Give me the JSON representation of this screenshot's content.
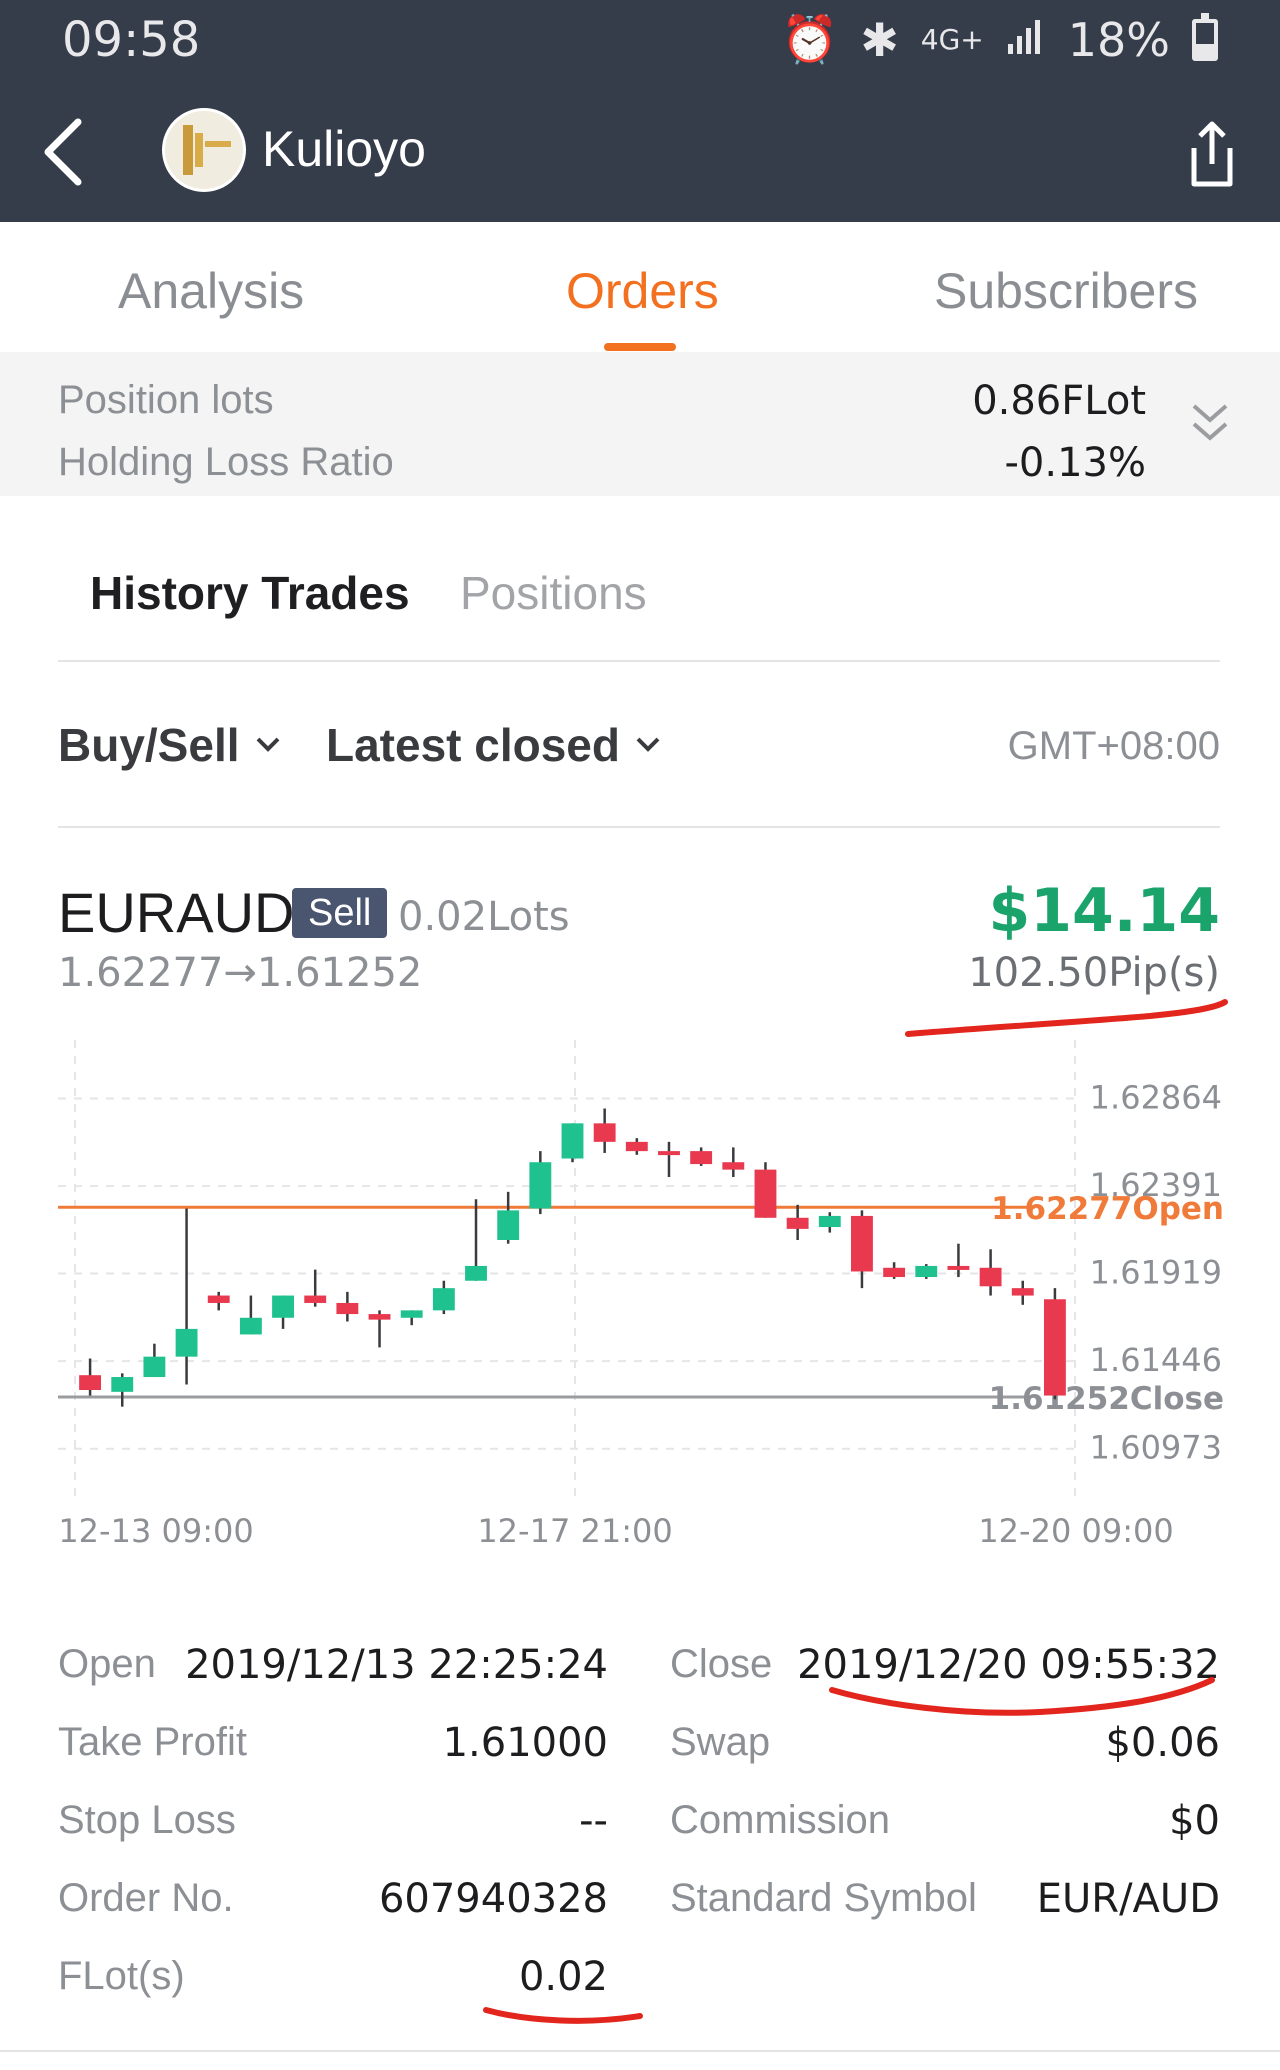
{
  "status": {
    "time": "09:58",
    "network": "4G+",
    "battery": "18%"
  },
  "header": {
    "title": "Kulioyo"
  },
  "tabs": [
    {
      "label": "Analysis"
    },
    {
      "label": "Orders"
    },
    {
      "label": "Subscribers"
    }
  ],
  "summary": {
    "position_lots_label": "Position lots",
    "position_lots_value": "0.86FLot",
    "holding_loss_label": "Holding Loss Ratio",
    "holding_loss_value": "-0.13%"
  },
  "subtabs": [
    {
      "label": "History Trades"
    },
    {
      "label": "Positions"
    }
  ],
  "filters": {
    "side": "Buy/Sell",
    "sort": "Latest closed",
    "timezone": "GMT+08:00"
  },
  "trade": {
    "symbol": "EURAUD",
    "direction": "Sell",
    "lots": "0.02Lots",
    "prices": "1.62277→1.61252",
    "profit": "$14.14",
    "pips": "102.50Pip(s)",
    "details": {
      "open_label": "Open",
      "open_value": "2019/12/13 22:25:24",
      "close_label": "Close",
      "close_value": "2019/12/20 09:55:32",
      "tp_label": "Take Profit",
      "tp_value": "1.61000",
      "swap_label": "Swap",
      "swap_value": "$0.06",
      "sl_label": "Stop Loss",
      "sl_value": "--",
      "commission_label": "Commission",
      "commission_value": "$0",
      "order_label": "Order No.",
      "order_value": "607940328",
      "symbol_label": "Standard Symbol",
      "symbol_value": "EUR/AUD",
      "flot_label": "FLot(s)",
      "flot_value": "0.02"
    }
  },
  "colors": {
    "header_bg": "#353c4a",
    "accent": "#f2701f",
    "up": "#1fc28f",
    "down": "#e8394f",
    "profit": "#1aa36a"
  },
  "chart_data": {
    "type": "candlestick",
    "y_ticks": [
      "1.62864",
      "1.62391",
      "1.61919",
      "1.61446",
      "1.60973"
    ],
    "ylim": [
      1.6075,
      1.6318
    ],
    "x_ticks": [
      "12-13 09:00",
      "12-17 21:00",
      "12-20 09:00"
    ],
    "open_line": {
      "value": 1.62277,
      "label": "1.62277Open"
    },
    "close_line": {
      "value": 1.61252,
      "label": "1.61252Close"
    },
    "candles": [
      {
        "o": 1.6137,
        "c": 1.6129,
        "h": 1.6146,
        "l": 1.6126
      },
      {
        "o": 1.6128,
        "c": 1.6136,
        "h": 1.6138,
        "l": 1.612
      },
      {
        "o": 1.6136,
        "c": 1.6147,
        "h": 1.6154,
        "l": 1.6136
      },
      {
        "o": 1.6147,
        "c": 1.6162,
        "h": 1.6227,
        "l": 1.6132
      },
      {
        "o": 1.618,
        "c": 1.6176,
        "h": 1.6182,
        "l": 1.6172
      },
      {
        "o": 1.6159,
        "c": 1.6168,
        "h": 1.618,
        "l": 1.6159
      },
      {
        "o": 1.6168,
        "c": 1.618,
        "h": 1.618,
        "l": 1.6162
      },
      {
        "o": 1.618,
        "c": 1.6176,
        "h": 1.6194,
        "l": 1.6174
      },
      {
        "o": 1.6176,
        "c": 1.617,
        "h": 1.6182,
        "l": 1.6166
      },
      {
        "o": 1.617,
        "c": 1.6167,
        "h": 1.6172,
        "l": 1.6152
      },
      {
        "o": 1.6168,
        "c": 1.6172,
        "h": 1.6172,
        "l": 1.6164
      },
      {
        "o": 1.6172,
        "c": 1.6184,
        "h": 1.6188,
        "l": 1.617
      },
      {
        "o": 1.6188,
        "c": 1.6196,
        "h": 1.6232,
        "l": 1.6188
      },
      {
        "o": 1.621,
        "c": 1.6226,
        "h": 1.6236,
        "l": 1.6208
      },
      {
        "o": 1.6227,
        "c": 1.6252,
        "h": 1.6258,
        "l": 1.6224
      },
      {
        "o": 1.6254,
        "c": 1.6273,
        "h": 1.6273,
        "l": 1.6252
      },
      {
        "o": 1.6273,
        "c": 1.6263,
        "h": 1.6281,
        "l": 1.6257
      },
      {
        "o": 1.6263,
        "c": 1.6258,
        "h": 1.6265,
        "l": 1.6256
      },
      {
        "o": 1.6258,
        "c": 1.6256,
        "h": 1.6263,
        "l": 1.6244
      },
      {
        "o": 1.6258,
        "c": 1.6251,
        "h": 1.626,
        "l": 1.625
      },
      {
        "o": 1.6252,
        "c": 1.6248,
        "h": 1.626,
        "l": 1.6244
      },
      {
        "o": 1.6248,
        "c": 1.6222,
        "h": 1.6252,
        "l": 1.6222
      },
      {
        "o": 1.6222,
        "c": 1.6216,
        "h": 1.6229,
        "l": 1.621
      },
      {
        "o": 1.6217,
        "c": 1.6223,
        "h": 1.6225,
        "l": 1.6214
      },
      {
        "o": 1.6223,
        "c": 1.6193,
        "h": 1.6226,
        "l": 1.6184
      },
      {
        "o": 1.6195,
        "c": 1.619,
        "h": 1.6198,
        "l": 1.6189
      },
      {
        "o": 1.619,
        "c": 1.6196,
        "h": 1.6197,
        "l": 1.6189
      },
      {
        "o": 1.6196,
        "c": 1.6194,
        "h": 1.6208,
        "l": 1.619
      },
      {
        "o": 1.6195,
        "c": 1.6185,
        "h": 1.6205,
        "l": 1.618
      },
      {
        "o": 1.6184,
        "c": 1.618,
        "h": 1.6188,
        "l": 1.6175
      },
      {
        "o": 1.6178,
        "c": 1.6126,
        "h": 1.6184,
        "l": 1.6124
      }
    ]
  }
}
